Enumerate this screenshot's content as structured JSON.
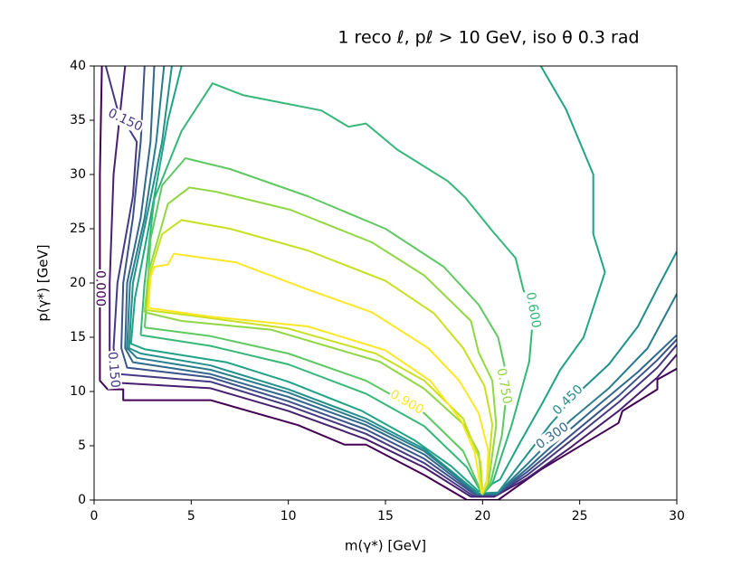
{
  "chart_data": {
    "type": "contour",
    "title": "1 reco ℓ, pℓ > 10 GeV, iso θ 0.3 rad",
    "xlabel": "m(γ*) [GeV]",
    "ylabel": "p(γ*) [GeV]",
    "xlim": [
      0,
      30
    ],
    "ylim": [
      0,
      40
    ],
    "xticks": [
      0,
      5,
      10,
      15,
      20,
      25,
      30
    ],
    "yticks": [
      0,
      5,
      10,
      15,
      20,
      25,
      30,
      35,
      40
    ],
    "series": [
      {
        "label": "0.000",
        "color": "#440154",
        "x": [
          0.4,
          0.3,
          0.3,
          0.3,
          0.7,
          1.5,
          1.5,
          6,
          10.5,
          12.9,
          14,
          17,
          19.2,
          20.8,
          23,
          27,
          27.2,
          29,
          29,
          30
        ],
        "y": [
          40,
          30,
          20,
          11,
          10.2,
          10.2,
          9.2,
          9.2,
          6.9,
          5.1,
          5.1,
          2.3,
          0,
          0,
          2.8,
          7.1,
          8.2,
          10.2,
          11.1,
          12.1
        ]
      },
      {
        "color": "#481f70",
        "x": [
          1.6,
          1.3,
          1.0,
          0.8,
          0.8,
          1.2,
          6,
          10,
          14,
          17,
          19.4,
          20.6,
          22.3,
          24.5,
          27,
          29,
          30
        ],
        "y": [
          40,
          35,
          30,
          20,
          12.5,
          10.8,
          10.3,
          8.2,
          5.6,
          3,
          0.3,
          0.3,
          2,
          4.8,
          8.2,
          11.3,
          13.4
        ]
      },
      {
        "label": "0.150",
        "color": "#443983",
        "x": [
          0.6,
          1.2,
          2.2,
          2.0,
          1.2,
          1.0,
          1.3,
          6,
          10,
          14,
          17,
          19.5,
          20.65,
          22.3,
          24.5,
          27,
          29,
          30
        ],
        "y": [
          40,
          36,
          33,
          28,
          20,
          14,
          11.6,
          10.9,
          8.7,
          6.1,
          3.4,
          0.4,
          0.4,
          2.3,
          5.4,
          9,
          12.2,
          14.3
        ]
      },
      {
        "color": "#3b528b",
        "x": [
          2.6,
          2.4,
          2.0,
          1.5,
          1.4,
          1.7,
          6,
          10,
          14,
          17,
          19.6,
          20.7,
          22.3,
          24.5,
          27,
          29,
          30
        ],
        "y": [
          40,
          33,
          26,
          20,
          14,
          12.2,
          11.3,
          9.1,
          6.5,
          3.8,
          0.5,
          0.5,
          2.6,
          5.9,
          9.6,
          12.9,
          14.8
        ]
      },
      {
        "label": "0.300",
        "color": "#31688e",
        "x": [
          3.1,
          2.9,
          2.4,
          1.7,
          1.6,
          2.0,
          6,
          10,
          14,
          17,
          19.7,
          20.7,
          22.3,
          24.5,
          26,
          28,
          30
        ],
        "y": [
          40,
          33,
          26,
          20,
          14,
          12.7,
          11.6,
          9.5,
          6.9,
          4.2,
          0.5,
          0.5,
          2.9,
          6.5,
          8.8,
          11.8,
          15.2
        ]
      },
      {
        "color": "#287c8e",
        "x": [
          3.6,
          3.2,
          2.6,
          1.85,
          1.7,
          2.2,
          6,
          10,
          14,
          17,
          19.75,
          20.75,
          22.3,
          24.5,
          26.5,
          28.5,
          30
        ],
        "y": [
          40,
          33,
          26,
          20,
          14,
          13.1,
          12.0,
          9.9,
          7.2,
          4.5,
          0.6,
          0.6,
          3.3,
          7.3,
          10.3,
          14,
          19
        ]
      },
      {
        "label": "0.450",
        "color": "#21918c",
        "x": [
          4.0,
          3.5,
          2.7,
          2.0,
          1.8,
          2.4,
          6,
          10,
          14,
          17,
          19.8,
          20.8,
          22,
          23.5,
          25,
          26.5,
          28,
          29,
          30
        ],
        "y": [
          40,
          33,
          26,
          20,
          14,
          13.5,
          12.4,
          10.2,
          7.5,
          4.7,
          0.6,
          0.7,
          3.5,
          7,
          10,
          12.5,
          16,
          19.5,
          22.9
        ]
      },
      {
        "color": "#20a486",
        "x": [
          4.5,
          3.8,
          2.8,
          2.1,
          1.9,
          2.6,
          6.8,
          10,
          13.8,
          16.5,
          18.4,
          19.8,
          20.9,
          21.9,
          23.1,
          24,
          25.2,
          26.3,
          25.7,
          25.7,
          25,
          24.3,
          23
        ],
        "y": [
          40,
          35,
          25,
          18.6,
          14.4,
          13.9,
          12.7,
          10.9,
          8.2,
          5.5,
          3.1,
          0.8,
          1.9,
          5.2,
          9,
          12,
          15,
          21,
          24.5,
          30,
          33,
          36,
          40
        ]
      },
      {
        "label": "0.600",
        "color": "#35b779",
        "x": [
          2.4,
          6,
          10,
          14,
          17,
          19.2,
          20,
          20.5,
          21.5,
          22.4,
          22.6,
          22.1,
          21.7,
          20.5,
          19.1,
          18.2,
          15.6,
          14,
          13.1,
          11.7,
          7.7,
          6.1,
          4.5,
          3.1,
          2.6,
          2.4
        ],
        "y": [
          15.2,
          14.2,
          12.5,
          9.8,
          6.8,
          3,
          0.5,
          1.5,
          6.9,
          12.75,
          16.9,
          19.4,
          22.3,
          24.8,
          27.9,
          29.4,
          32.3,
          34.7,
          34.4,
          35.9,
          37.3,
          38.4,
          34,
          27.75,
          20,
          15.2
        ]
      },
      {
        "color": "#5ec962",
        "x": [
          2.6,
          6,
          10,
          14,
          17,
          19,
          20,
          20.4,
          21,
          21.3,
          20.8,
          19.8,
          18,
          15,
          11,
          7,
          4.7,
          3.5,
          2.9,
          2.7,
          2.6
        ],
        "y": [
          15.9,
          15.1,
          13.5,
          11,
          8,
          4.5,
          0.5,
          1.5,
          6,
          11,
          15,
          18,
          21.5,
          25,
          28,
          30.5,
          31.5,
          29,
          24,
          18,
          15.9
        ]
      },
      {
        "label": "0.750",
        "color": "#90d743",
        "x": [
          2.6,
          4.5,
          9.1,
          14.7,
          17,
          19,
          19.8,
          20,
          20.3,
          20.7,
          20.5,
          19.8,
          19.4,
          18.2,
          17,
          14.3,
          10.1,
          6.3,
          4.9,
          3.8,
          2.8,
          2.6
        ],
        "y": [
          17.3,
          16.5,
          15.7,
          12.75,
          10.25,
          7,
          4.4,
          0.6,
          1.5,
          6.9,
          11,
          13.6,
          16.5,
          18.6,
          20.7,
          23.75,
          26.75,
          28.4,
          28.8,
          27.3,
          21,
          17.3
        ]
      },
      {
        "color": "#c8e020",
        "x": [
          2.7,
          5,
          10,
          14.5,
          17,
          19,
          19.9,
          20,
          20.25,
          20.5,
          20.1,
          19,
          17.5,
          15,
          11,
          7,
          4.5,
          3.5,
          2.9,
          2.7
        ],
        "y": [
          17.5,
          17,
          15.8,
          13.5,
          11,
          7.5,
          3.5,
          0.6,
          2,
          7,
          10.5,
          14,
          17.2,
          20.2,
          23,
          25,
          25.8,
          24.5,
          21,
          17.5
        ]
      },
      {
        "label": "0.900",
        "color": "#fde725",
        "x": [
          2.8,
          6,
          11,
          15,
          17.3,
          18.9,
          19.6,
          19.95,
          20.2,
          20.3,
          19.8,
          18.8,
          17.2,
          14.3,
          11,
          7.3,
          4.1,
          3.8,
          3.1,
          2.9,
          2.8
        ],
        "y": [
          17.7,
          16.9,
          16,
          13.8,
          11,
          7.3,
          4.4,
          0.6,
          1.5,
          4.5,
          8,
          11,
          14,
          17.3,
          19.4,
          21.9,
          22.7,
          21.7,
          21.5,
          20.5,
          17.7
        ]
      }
    ]
  }
}
